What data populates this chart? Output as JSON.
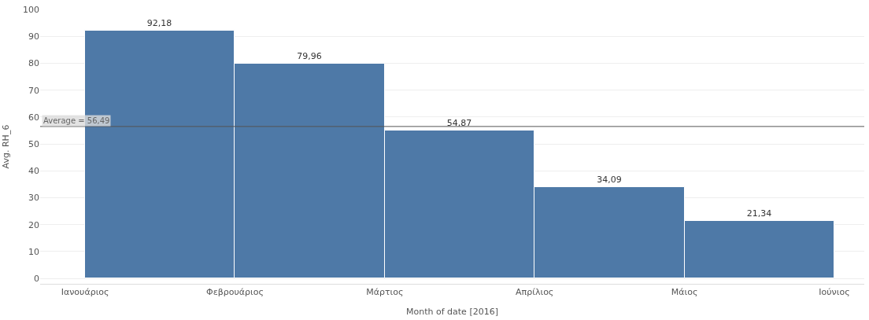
{
  "chart_data": {
    "type": "bar",
    "categories": [
      "Ιανουάριος",
      "Φεβρουάριος",
      "Μάρτιος",
      "Απρίλιος",
      "Μάιος",
      "Ιούνιος"
    ],
    "values": [
      92.18,
      79.96,
      54.87,
      34.09,
      21.34,
      null
    ],
    "value_labels": [
      "92,18",
      "79,96",
      "54,87",
      "34,09",
      "21,34",
      null
    ],
    "color": "#4e79a7",
    "xlabel": "Month of date [2016]",
    "ylabel": "Avg. RH_6",
    "ylim": [
      -2,
      100
    ],
    "yticks": [
      0,
      10,
      20,
      30,
      40,
      50,
      60,
      70,
      80,
      90,
      100
    ],
    "ref_lines": [
      {
        "axis": "y",
        "value": 56.49,
        "label": "Average = 56,49",
        "color": "#555555"
      }
    ],
    "grid": "y"
  }
}
